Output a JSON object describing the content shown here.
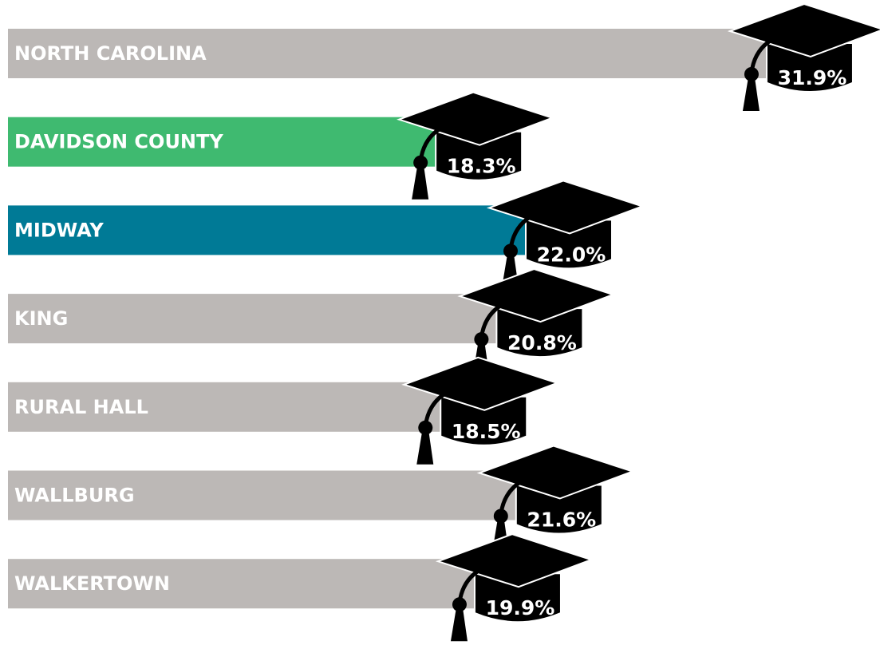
{
  "chart_data": {
    "type": "bar",
    "orientation": "horizontal",
    "categories": [
      "NORTH CAROLINA",
      "DAVIDSON COUNTY",
      "MIDWAY",
      "KING",
      "RURAL HALL",
      "WALLBURG",
      "WALKERTOWN"
    ],
    "values": [
      31.9,
      18.3,
      22.0,
      20.8,
      18.5,
      21.6,
      19.9
    ],
    "value_labels": [
      "31.9%",
      "18.3%",
      "22.0%",
      "20.8%",
      "18.5%",
      "21.6%",
      "19.9%"
    ],
    "colors": [
      "#bcb8b6",
      "#3fba70",
      "#007a96",
      "#bcb8b6",
      "#bcb8b6",
      "#bcb8b6",
      "#bcb8b6"
    ]
  }
}
